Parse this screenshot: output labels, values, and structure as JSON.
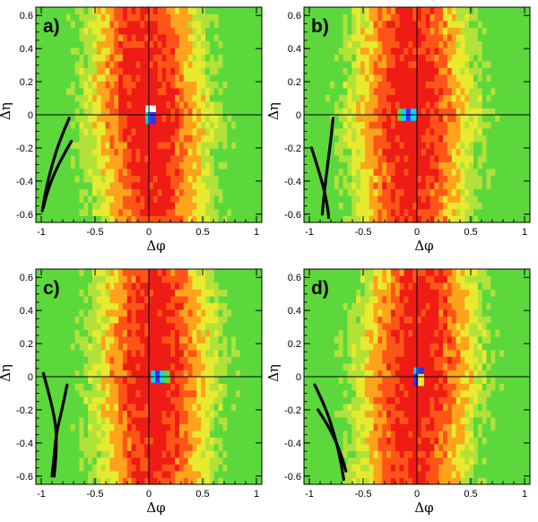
{
  "figure": {
    "colors": {
      "background": "#ffffff",
      "frame": "#000000",
      "low": "#5cd83c",
      "mid_low": "#b2e23a",
      "mid": "#e8ea2e",
      "mid_high": "#ffa21c",
      "high": "#ff5418",
      "peak": "#ee1c14",
      "center_cyan": "#00d8ff",
      "center_blue": "#3a2cff",
      "center_white": "#ffffff"
    }
  },
  "chart_data": [
    {
      "type": "heatmap",
      "panel_label": "a)",
      "xlabel": "Δφ",
      "ylabel": "Δη",
      "xlim": [
        -1.05,
        1.05
      ],
      "ylim": [
        -0.65,
        0.65
      ],
      "x_ticks": [
        -1,
        -0.5,
        0,
        0.5,
        1
      ],
      "x_tick_labels": [
        "-1",
        "-0.5",
        "0",
        "0.5",
        "1"
      ],
      "y_ticks": [
        -0.6,
        -0.4,
        -0.2,
        0,
        0.2,
        0.4,
        0.6
      ],
      "y_tick_labels": [
        "-0.6",
        "-0.4",
        "-0.2",
        "0",
        "0.2",
        "0.4",
        "0.6"
      ],
      "band_center_dphi": 0.0,
      "band_tilt": -0.08,
      "grid": false,
      "crosshair": [
        0,
        0
      ],
      "overlay_curves": [
        [
          [
            -0.74,
            -0.02
          ],
          [
            -0.82,
            -0.14
          ],
          [
            -0.9,
            -0.3
          ],
          [
            -0.96,
            -0.46
          ],
          [
            -0.99,
            -0.58
          ]
        ],
        [
          [
            -0.72,
            -0.16
          ],
          [
            -0.8,
            -0.25
          ],
          [
            -0.89,
            -0.37
          ],
          [
            -0.95,
            -0.48
          ],
          [
            -0.98,
            -0.56
          ]
        ]
      ],
      "center_feature": [
        {
          "dphi": 0.01,
          "deta": 0.02,
          "color": "center_white"
        },
        {
          "dphi": 0.05,
          "deta": 0.02,
          "color": "center_white"
        },
        {
          "dphi": 0.01,
          "deta": -0.02,
          "color": "center_cyan"
        },
        {
          "dphi": 0.05,
          "deta": -0.02,
          "color": "center_blue"
        }
      ]
    },
    {
      "type": "heatmap",
      "panel_label": "b)",
      "xlabel": "Δφ",
      "ylabel": "Δη",
      "xlim": [
        -1.05,
        1.05
      ],
      "ylim": [
        -0.65,
        0.65
      ],
      "x_ticks": [
        -1,
        -0.5,
        0,
        0.5,
        1
      ],
      "x_tick_labels": [
        "-1",
        "-0.5",
        "0",
        "0.5",
        "1"
      ],
      "y_ticks": [
        -0.6,
        -0.4,
        -0.2,
        0,
        0.2,
        0.4,
        0.6
      ],
      "y_tick_labels": [
        "-0.6",
        "-0.4",
        "-0.2",
        "0",
        "0.2",
        "0.4",
        "0.6"
      ],
      "band_center_dphi": -0.05,
      "band_tilt": 0.0,
      "grid": false,
      "crosshair": [
        0,
        0
      ],
      "overlay_curves": [
        [
          [
            -0.98,
            -0.2
          ],
          [
            -0.92,
            -0.32
          ],
          [
            -0.86,
            -0.46
          ],
          [
            -0.83,
            -0.56
          ],
          [
            -0.82,
            -0.62
          ]
        ],
        [
          [
            -0.78,
            -0.02
          ],
          [
            -0.8,
            -0.15
          ],
          [
            -0.83,
            -0.3
          ],
          [
            -0.86,
            -0.46
          ],
          [
            -0.88,
            -0.6
          ]
        ]
      ],
      "center_feature": [
        {
          "dphi": -0.14,
          "deta": 0.0,
          "color": "low"
        },
        {
          "dphi": -0.1,
          "deta": 0.0,
          "color": "center_cyan"
        },
        {
          "dphi": -0.06,
          "deta": 0.0,
          "color": "center_blue"
        },
        {
          "dphi": -0.02,
          "deta": 0.0,
          "color": "center_cyan"
        }
      ]
    },
    {
      "type": "heatmap",
      "panel_label": "c)",
      "xlabel": "Δφ",
      "ylabel": "Δη",
      "xlim": [
        -1.05,
        1.05
      ],
      "ylim": [
        -0.65,
        0.65
      ],
      "x_ticks": [
        -1,
        -0.5,
        0,
        0.5,
        1
      ],
      "x_tick_labels": [
        "-1",
        "-0.5",
        "0",
        "0.5",
        "1"
      ],
      "y_ticks": [
        -0.6,
        -0.4,
        -0.2,
        0,
        0.2,
        0.4,
        0.6
      ],
      "y_tick_labels": [
        "-0.6",
        "-0.4",
        "-0.2",
        "0",
        "0.2",
        "0.4",
        "0.6"
      ],
      "band_center_dphi": 0.05,
      "band_tilt": 0.0,
      "grid": false,
      "crosshair": [
        0,
        0
      ],
      "overlay_curves": [
        [
          [
            -0.98,
            0.02
          ],
          [
            -0.92,
            -0.12
          ],
          [
            -0.86,
            -0.3
          ],
          [
            -0.86,
            -0.46
          ],
          [
            -0.88,
            -0.6
          ]
        ],
        [
          [
            -0.76,
            -0.05
          ],
          [
            -0.8,
            -0.18
          ],
          [
            -0.86,
            -0.34
          ],
          [
            -0.88,
            -0.48
          ],
          [
            -0.9,
            -0.6
          ]
        ]
      ],
      "center_feature": [
        {
          "dphi": 0.06,
          "deta": 0.0,
          "color": "center_cyan"
        },
        {
          "dphi": 0.1,
          "deta": 0.0,
          "color": "center_blue"
        },
        {
          "dphi": 0.14,
          "deta": 0.0,
          "color": "center_cyan"
        },
        {
          "dphi": 0.18,
          "deta": 0.0,
          "color": "low"
        }
      ]
    },
    {
      "type": "heatmap",
      "panel_label": "d)",
      "xlabel": "Δφ",
      "ylabel": "Δη",
      "xlim": [
        -1.05,
        1.05
      ],
      "ylim": [
        -0.65,
        0.65
      ],
      "x_ticks": [
        -1,
        -0.5,
        0,
        0.5,
        1
      ],
      "x_tick_labels": [
        "-1",
        "-0.5",
        "0",
        "0.5",
        "1"
      ],
      "y_ticks": [
        -0.6,
        -0.4,
        -0.2,
        0,
        0.2,
        0.4,
        0.6
      ],
      "y_tick_labels": [
        "-0.6",
        "-0.4",
        "-0.2",
        "0",
        "0.2",
        "0.4",
        "0.6"
      ],
      "band_center_dphi": 0.0,
      "band_tilt": 0.08,
      "grid": false,
      "crosshair": [
        0,
        0
      ],
      "overlay_curves": [
        [
          [
            -0.95,
            -0.05
          ],
          [
            -0.86,
            -0.17
          ],
          [
            -0.78,
            -0.32
          ],
          [
            -0.72,
            -0.47
          ],
          [
            -0.68,
            -0.62
          ]
        ],
        [
          [
            -0.92,
            -0.2
          ],
          [
            -0.84,
            -0.28
          ],
          [
            -0.76,
            -0.38
          ],
          [
            -0.7,
            -0.48
          ],
          [
            -0.66,
            -0.57
          ]
        ]
      ],
      "center_feature": [
        {
          "dphi": 0.01,
          "deta": 0.02,
          "color": "center_cyan"
        },
        {
          "dphi": 0.05,
          "deta": 0.02,
          "color": "center_blue"
        },
        {
          "dphi": 0.01,
          "deta": -0.02,
          "color": "center_blue"
        },
        {
          "dphi": 0.05,
          "deta": -0.02,
          "color": "mid"
        }
      ]
    }
  ]
}
